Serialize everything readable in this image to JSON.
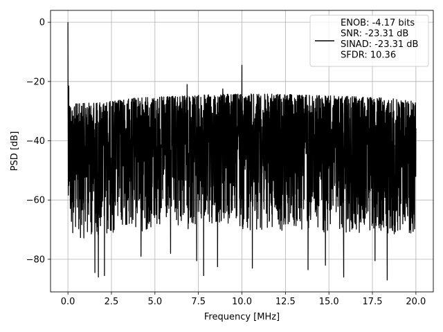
{
  "chart_data": {
    "type": "line",
    "title": "",
    "xlabel": "Frequency [MHz]",
    "ylabel": "PSD [dB]",
    "xlim": [
      -1.0,
      21.0
    ],
    "ylim": [
      -91.0,
      4.0
    ],
    "xticks": [
      0.0,
      2.5,
      5.0,
      7.5,
      10.0,
      12.5,
      15.0,
      17.5,
      20.0
    ],
    "xtick_labels": [
      "0.0",
      "2.5",
      "5.0",
      "7.5",
      "10.0",
      "12.5",
      "15.0",
      "17.5",
      "20.0"
    ],
    "yticks": [
      0,
      -20,
      -40,
      -60,
      -80
    ],
    "ytick_labels": [
      "0",
      "−20",
      "−40",
      "−60",
      "−80"
    ],
    "grid": true,
    "legend_placement": "upper-right",
    "series": [
      {
        "name": "ENOB: -4.17 bits\nSNR: -23.31 dB\nSINAD: -23.31 dB\nSFDR: 10.36",
        "color": "#000000",
        "x_range": [
          0.0,
          20.0
        ],
        "noise_band_top": [
          [
            0.0,
            -21
          ],
          [
            0.15,
            -27.5
          ],
          [
            0.5,
            -27.5
          ],
          [
            2.0,
            -27
          ],
          [
            4.0,
            -25.5
          ],
          [
            6.0,
            -25
          ],
          [
            8.0,
            -24.5
          ],
          [
            10.0,
            -24.2
          ],
          [
            12.0,
            -24.3
          ],
          [
            14.0,
            -24.6
          ],
          [
            16.0,
            -25
          ],
          [
            18.0,
            -25.5
          ],
          [
            20.0,
            -26.5
          ]
        ],
        "noise_band_bottom": [
          [
            0.0,
            -56
          ],
          [
            0.15,
            -73
          ],
          [
            1.0,
            -73
          ],
          [
            3.0,
            -71
          ],
          [
            6.0,
            -70
          ],
          [
            10.0,
            -70
          ],
          [
            14.0,
            -71
          ],
          [
            18.0,
            -71
          ],
          [
            20.0,
            -73
          ]
        ],
        "peaks": [
          {
            "x": 0.0,
            "y": 0.0
          },
          {
            "x": 0.05,
            "y": -21.5
          },
          {
            "x": 10.0,
            "y": -14.5
          },
          {
            "x": 6.85,
            "y": -21.0
          },
          {
            "x": 8.9,
            "y": -22.5
          }
        ],
        "dips": [
          {
            "x": 1.55,
            "y": -84.5
          },
          {
            "x": 1.75,
            "y": -86.0
          },
          {
            "x": 2.1,
            "y": -85.5
          },
          {
            "x": 7.4,
            "y": -80.5
          },
          {
            "x": 7.8,
            "y": -85.5
          },
          {
            "x": 8.6,
            "y": -82.5
          },
          {
            "x": 10.6,
            "y": -83.0
          },
          {
            "x": 13.8,
            "y": -83.5
          },
          {
            "x": 14.8,
            "y": -82.0
          },
          {
            "x": 15.85,
            "y": -86.0
          },
          {
            "x": 17.65,
            "y": -80.5
          },
          {
            "x": 18.35,
            "y": -87.0
          },
          {
            "x": 5.9,
            "y": -78.0
          },
          {
            "x": 4.2,
            "y": -79.0
          }
        ]
      }
    ]
  }
}
